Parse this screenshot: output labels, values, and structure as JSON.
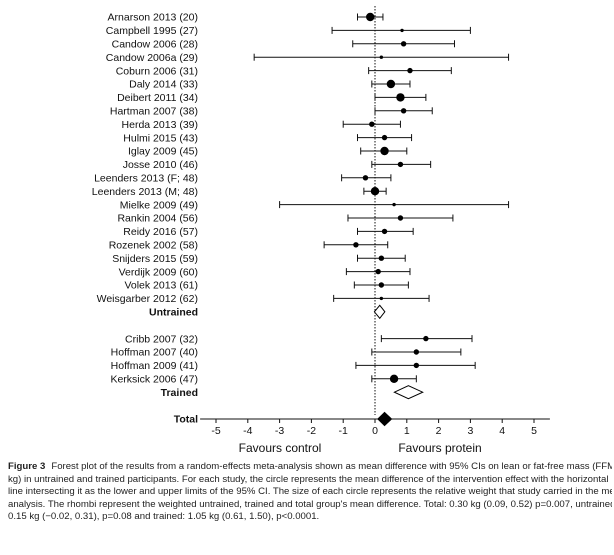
{
  "chart_data": {
    "type": "forest",
    "xlim": [
      -5.5,
      5.5
    ],
    "x_ticks": [
      -5,
      -4,
      -3,
      -2,
      -1,
      0,
      1,
      2,
      3,
      4,
      5
    ],
    "x_tick_labels": [
      "-5",
      "-4",
      "-3",
      "-2",
      "-1",
      "0",
      "1",
      "2",
      "3",
      "4",
      "5"
    ],
    "favours_left": "Favours control",
    "favours_right": "Favours protein",
    "studies": [
      {
        "label": "Arnarson 2013 (20)",
        "group": "untrained",
        "mean": -0.15,
        "lower": -0.55,
        "upper": 0.25,
        "weight": "large"
      },
      {
        "label": "Campbell 1995 (27)",
        "group": "untrained",
        "mean": 0.85,
        "lower": -1.35,
        "upper": 3.0,
        "weight": "small"
      },
      {
        "label": "Candow 2006 (28)",
        "group": "untrained",
        "mean": 0.9,
        "lower": -0.7,
        "upper": 2.5,
        "weight": "medium"
      },
      {
        "label": "Candow 2006a (29)",
        "group": "untrained",
        "mean": 0.2,
        "lower": -3.8,
        "upper": 4.2,
        "weight": "small"
      },
      {
        "label": "Coburn 2006 (31)",
        "group": "untrained",
        "mean": 1.1,
        "lower": -0.2,
        "upper": 2.4,
        "weight": "medium"
      },
      {
        "label": "Daly 2014 (33)",
        "group": "untrained",
        "mean": 0.5,
        "lower": -0.1,
        "upper": 1.1,
        "weight": "large"
      },
      {
        "label": "Deibert 2011 (34)",
        "group": "untrained",
        "mean": 0.8,
        "lower": 0.0,
        "upper": 1.6,
        "weight": "large"
      },
      {
        "label": "Hartman 2007 (38)",
        "group": "untrained",
        "mean": 0.9,
        "lower": 0.0,
        "upper": 1.8,
        "weight": "medium"
      },
      {
        "label": "Herda 2013 (39)",
        "group": "untrained",
        "mean": -0.1,
        "lower": -1.0,
        "upper": 0.8,
        "weight": "medium"
      },
      {
        "label": "Hulmi 2015 (43)",
        "group": "untrained",
        "mean": 0.3,
        "lower": -0.55,
        "upper": 1.15,
        "weight": "medium"
      },
      {
        "label": "Iglay 2009 (45)",
        "group": "untrained",
        "mean": 0.3,
        "lower": -0.45,
        "upper": 1.0,
        "weight": "large"
      },
      {
        "label": "Josse 2010 (46)",
        "group": "untrained",
        "mean": 0.8,
        "lower": -0.1,
        "upper": 1.75,
        "weight": "medium"
      },
      {
        "label": "Leenders 2013 (F; 48)",
        "group": "untrained",
        "mean": -0.3,
        "lower": -1.05,
        "upper": 0.5,
        "weight": "medium"
      },
      {
        "label": "Leenders 2013 (M; 48)",
        "group": "untrained",
        "mean": 0.0,
        "lower": -0.35,
        "upper": 0.35,
        "weight": "large"
      },
      {
        "label": "Mielke 2009 (49)",
        "group": "untrained",
        "mean": 0.6,
        "lower": -3.0,
        "upper": 4.2,
        "weight": "small"
      },
      {
        "label": "Rankin 2004 (56)",
        "group": "untrained",
        "mean": 0.8,
        "lower": -0.85,
        "upper": 2.45,
        "weight": "medium"
      },
      {
        "label": "Reidy 2016 (57)",
        "group": "untrained",
        "mean": 0.3,
        "lower": -0.55,
        "upper": 1.2,
        "weight": "medium"
      },
      {
        "label": "Rozenek 2002 (58)",
        "group": "untrained",
        "mean": -0.6,
        "lower": -1.6,
        "upper": 0.4,
        "weight": "medium"
      },
      {
        "label": "Snijders 2015 (59)",
        "group": "untrained",
        "mean": 0.2,
        "lower": -0.55,
        "upper": 0.95,
        "weight": "medium"
      },
      {
        "label": "Verdijk 2009 (60)",
        "group": "untrained",
        "mean": 0.1,
        "lower": -0.9,
        "upper": 1.1,
        "weight": "medium"
      },
      {
        "label": "Volek 2013 (61)",
        "group": "untrained",
        "mean": 0.2,
        "lower": -0.65,
        "upper": 1.05,
        "weight": "medium"
      },
      {
        "label": "Weisgarber 2012 (62)",
        "group": "untrained",
        "mean": 0.2,
        "lower": -1.3,
        "upper": 1.7,
        "weight": "small"
      },
      {
        "label": "Cribb 2007 (32)",
        "group": "trained",
        "mean": 1.6,
        "lower": 0.2,
        "upper": 3.05,
        "weight": "medium"
      },
      {
        "label": "Hoffman 2007 (40)",
        "group": "trained",
        "mean": 1.3,
        "lower": -0.1,
        "upper": 2.7,
        "weight": "medium"
      },
      {
        "label": "Hoffman 2009 (41)",
        "group": "trained",
        "mean": 1.3,
        "lower": -0.6,
        "upper": 3.15,
        "weight": "medium"
      },
      {
        "label": "Kerksick 2006 (47)",
        "group": "trained",
        "mean": 0.6,
        "lower": -0.1,
        "upper": 1.3,
        "weight": "large"
      }
    ],
    "summaries": [
      {
        "label": "Untrained",
        "mean": 0.15,
        "lower": -0.02,
        "upper": 0.31,
        "filled": false
      },
      {
        "label": "Trained",
        "mean": 1.05,
        "lower": 0.61,
        "upper": 1.5,
        "filled": false
      },
      {
        "label": "Total",
        "mean": 0.3,
        "lower": 0.09,
        "upper": 0.52,
        "filled": true
      }
    ]
  },
  "caption": {
    "figure_label": "Figure 3",
    "lines": [
      "Forest plot of the results from a random-effects meta-analysis shown as mean difference with 95% CIs on lean or fat-free mass (FFM",
      "kg) in untrained and trained participants. For each study, the circle represents the mean difference of the intervention effect with the horizontal",
      "line intersecting it as the lower and upper limits of the 95% CI. The size of each circle represents the relative weight that study carried in the met",
      "analysis. The rhombi represent the weighted untrained, trained and total group's mean difference. Total: 0.30 kg (0.09, 0.52) p=0.007, untrained:",
      "0.15 kg (−0.02, 0.31), p=0.08 and trained: 1.05 kg (0.61, 1.50), p<0.0001."
    ]
  }
}
